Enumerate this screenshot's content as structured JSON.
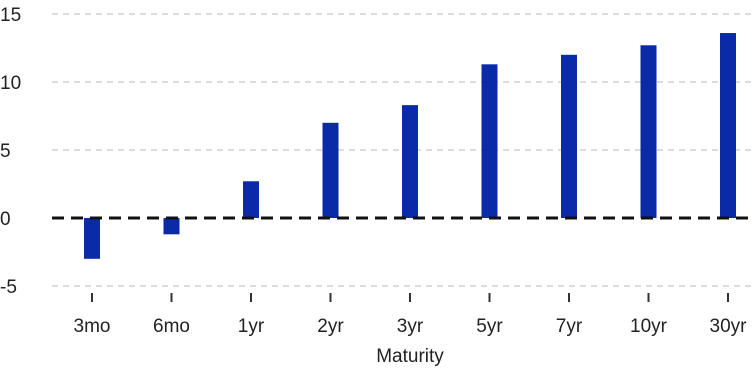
{
  "chart_data": {
    "type": "bar",
    "title": "",
    "xlabel": "Maturity",
    "ylabel": "",
    "categories": [
      "3mo",
      "6mo",
      "1yr",
      "2yr",
      "3yr",
      "5yr",
      "7yr",
      "10yr",
      "30yr"
    ],
    "values": [
      -3.0,
      -1.2,
      2.7,
      7.0,
      8.3,
      11.3,
      12.0,
      12.7,
      13.6
    ],
    "ylim": [
      -5,
      15
    ],
    "yticks": [
      15,
      10,
      5,
      0,
      -5
    ],
    "grid": true,
    "legend": "none",
    "bar_color": "#0a2aa8",
    "zero_line_color": "#111111"
  }
}
